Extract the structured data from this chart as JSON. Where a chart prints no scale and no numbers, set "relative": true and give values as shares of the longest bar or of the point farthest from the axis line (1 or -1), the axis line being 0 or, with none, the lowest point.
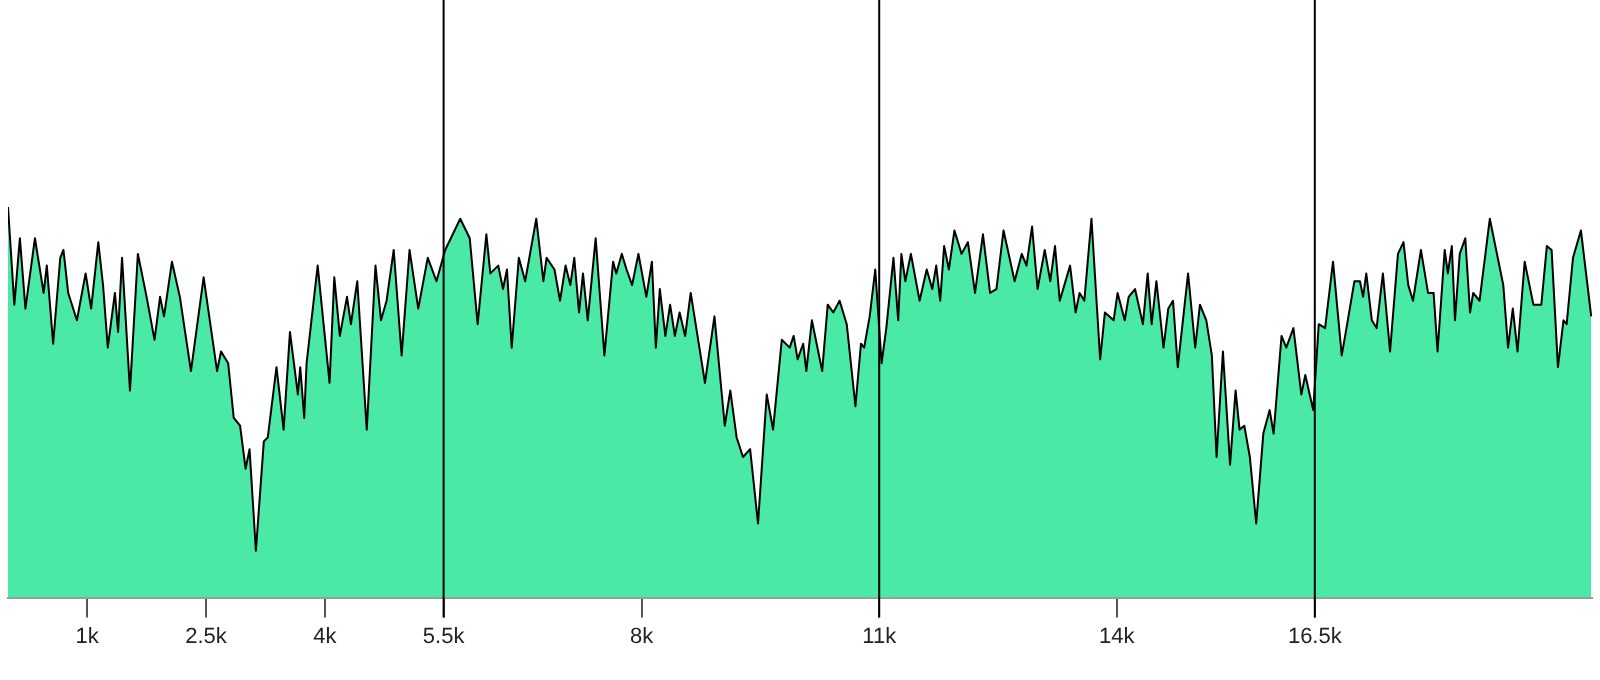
{
  "chart_data": {
    "type": "area",
    "relative": true,
    "legend": false,
    "grid": false,
    "xlim": [
      0,
      20000
    ],
    "xticks": [
      {
        "value": 1000,
        "label": "1k"
      },
      {
        "value": 2500,
        "label": "2.5k"
      },
      {
        "value": 4000,
        "label": "4k"
      },
      {
        "value": 5500,
        "label": "5.5k"
      },
      {
        "value": 8000,
        "label": "8k"
      },
      {
        "value": 11000,
        "label": "11k"
      },
      {
        "value": 14000,
        "label": "14k"
      },
      {
        "value": 16500,
        "label": "16.5k"
      }
    ],
    "ref_lines": [
      {
        "axis": "x",
        "value": 5500,
        "color": "#000000"
      },
      {
        "axis": "x",
        "value": 11000,
        "color": "#000000"
      },
      {
        "axis": "x",
        "value": 16500,
        "color": "#000000"
      }
    ],
    "series": [
      {
        "color": "#4aeaa6",
        "x": [
          0,
          80,
          150,
          220,
          340,
          450,
          490,
          570,
          660,
          700,
          760,
          870,
          980,
          1050,
          1140,
          1200,
          1260,
          1350,
          1390,
          1440,
          1540,
          1640,
          1750,
          1850,
          1920,
          1970,
          2070,
          2170,
          2310,
          2470,
          2640,
          2690,
          2780,
          2850,
          2930,
          3000,
          3050,
          3130,
          3230,
          3280,
          3390,
          3480,
          3560,
          3660,
          3690,
          3740,
          3770,
          3910,
          4060,
          4120,
          4190,
          4280,
          4330,
          4410,
          4530,
          4640,
          4710,
          4780,
          4870,
          4970,
          5070,
          5180,
          5300,
          5410,
          5520,
          5710,
          5830,
          5930,
          6040,
          6090,
          6190,
          6250,
          6300,
          6360,
          6450,
          6530,
          6670,
          6760,
          6800,
          6900,
          6970,
          7040,
          7100,
          7150,
          7210,
          7260,
          7320,
          7420,
          7530,
          7640,
          7680,
          7750,
          7810,
          7880,
          7960,
          8060,
          8130,
          8180,
          8230,
          8300,
          8360,
          8420,
          8480,
          8550,
          8620,
          8800,
          8920,
          9050,
          9120,
          9200,
          9280,
          9370,
          9470,
          9580,
          9660,
          9770,
          9870,
          9920,
          9970,
          10040,
          10080,
          10150,
          10280,
          10350,
          10420,
          10500,
          10590,
          10700,
          10770,
          10810,
          10880,
          10950,
          11030,
          11090,
          11180,
          11240,
          11280,
          11330,
          11400,
          11510,
          11600,
          11670,
          11720,
          11770,
          11820,
          11880,
          11950,
          12040,
          12120,
          12210,
          12310,
          12400,
          12480,
          12570,
          12710,
          12800,
          12860,
          12930,
          13000,
          13090,
          13160,
          13220,
          13280,
          13410,
          13480,
          13530,
          13590,
          13680,
          13790,
          13850,
          13960,
          14010,
          14100,
          14150,
          14230,
          14330,
          14390,
          14440,
          14500,
          14590,
          14650,
          14710,
          14770,
          14900,
          14990,
          15050,
          15130,
          15200,
          15260,
          15340,
          15430,
          15500,
          15550,
          15610,
          15680,
          15760,
          15850,
          15930,
          15980,
          16080,
          16140,
          16230,
          16330,
          16380,
          16480,
          16550,
          16630,
          16730,
          16840,
          16900,
          17000,
          17070,
          17110,
          17150,
          17220,
          17280,
          17360,
          17450,
          17550,
          17620,
          17680,
          17740,
          17840,
          17930,
          18000,
          18050,
          18140,
          18180,
          18230,
          18270,
          18330,
          18400,
          18460,
          18500,
          18580,
          18710,
          18880,
          18940,
          19000,
          19060,
          19150,
          19260,
          19360,
          19430,
          19490,
          19570,
          19640,
          19680,
          19760,
          19860,
          19990
        ],
        "values": [
          1.0,
          0.75,
          0.92,
          0.74,
          0.92,
          0.78,
          0.85,
          0.65,
          0.87,
          0.89,
          0.78,
          0.71,
          0.83,
          0.74,
          0.91,
          0.8,
          0.64,
          0.78,
          0.68,
          0.87,
          0.53,
          0.88,
          0.77,
          0.66,
          0.77,
          0.72,
          0.86,
          0.77,
          0.58,
          0.82,
          0.58,
          0.63,
          0.6,
          0.46,
          0.44,
          0.33,
          0.38,
          0.12,
          0.4,
          0.41,
          0.59,
          0.43,
          0.68,
          0.52,
          0.59,
          0.46,
          0.6,
          0.85,
          0.55,
          0.82,
          0.67,
          0.77,
          0.7,
          0.81,
          0.43,
          0.85,
          0.71,
          0.76,
          0.89,
          0.62,
          0.89,
          0.74,
          0.87,
          0.81,
          0.89,
          0.97,
          0.92,
          0.7,
          0.93,
          0.83,
          0.85,
          0.79,
          0.84,
          0.64,
          0.87,
          0.81,
          0.97,
          0.81,
          0.87,
          0.84,
          0.76,
          0.85,
          0.8,
          0.87,
          0.73,
          0.83,
          0.71,
          0.92,
          0.62,
          0.86,
          0.83,
          0.88,
          0.84,
          0.8,
          0.88,
          0.77,
          0.86,
          0.64,
          0.79,
          0.67,
          0.75,
          0.67,
          0.73,
          0.67,
          0.78,
          0.55,
          0.72,
          0.44,
          0.53,
          0.41,
          0.36,
          0.38,
          0.19,
          0.52,
          0.43,
          0.66,
          0.64,
          0.67,
          0.61,
          0.65,
          0.58,
          0.71,
          0.58,
          0.75,
          0.73,
          0.76,
          0.7,
          0.49,
          0.65,
          0.64,
          0.72,
          0.84,
          0.6,
          0.69,
          0.87,
          0.71,
          0.88,
          0.81,
          0.88,
          0.76,
          0.84,
          0.79,
          0.85,
          0.76,
          0.9,
          0.84,
          0.94,
          0.88,
          0.91,
          0.78,
          0.93,
          0.78,
          0.79,
          0.94,
          0.81,
          0.88,
          0.85,
          0.95,
          0.79,
          0.89,
          0.81,
          0.9,
          0.76,
          0.85,
          0.73,
          0.78,
          0.76,
          0.97,
          0.61,
          0.73,
          0.71,
          0.78,
          0.71,
          0.77,
          0.79,
          0.7,
          0.83,
          0.7,
          0.81,
          0.64,
          0.74,
          0.76,
          0.59,
          0.83,
          0.64,
          0.75,
          0.71,
          0.62,
          0.36,
          0.63,
          0.34,
          0.53,
          0.43,
          0.44,
          0.36,
          0.19,
          0.42,
          0.48,
          0.42,
          0.67,
          0.64,
          0.69,
          0.52,
          0.57,
          0.48,
          0.7,
          0.69,
          0.86,
          0.62,
          0.69,
          0.81,
          0.81,
          0.77,
          0.83,
          0.71,
          0.69,
          0.83,
          0.63,
          0.88,
          0.91,
          0.8,
          0.76,
          0.89,
          0.78,
          0.78,
          0.63,
          0.89,
          0.83,
          0.9,
          0.71,
          0.88,
          0.92,
          0.73,
          0.78,
          0.76,
          0.97,
          0.8,
          0.64,
          0.74,
          0.63,
          0.86,
          0.75,
          0.75,
          0.9,
          0.89,
          0.59,
          0.71,
          0.7,
          0.87,
          0.94,
          0.72
        ]
      }
    ]
  }
}
